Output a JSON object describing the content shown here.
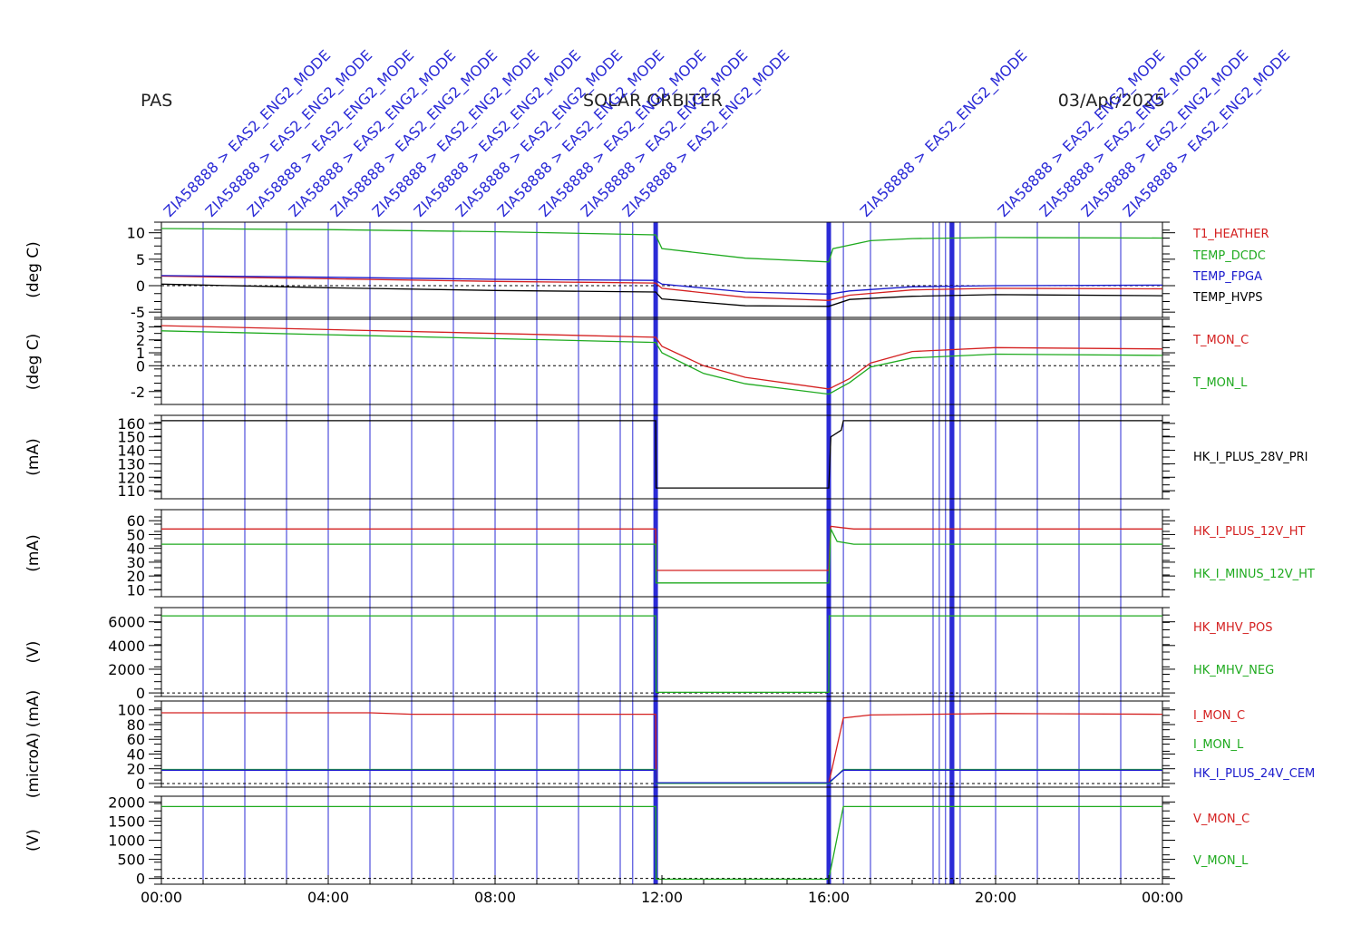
{
  "header": {
    "left": "PAS",
    "center": "SOLAR ORBITER",
    "right": "03/Apr/2025"
  },
  "colors": {
    "red": "#d42020",
    "green": "#1faa1f",
    "blue": "#1a1acc",
    "black": "#000000",
    "event": "#2b2bd6"
  },
  "xaxis": {
    "ticks": [
      "00:00",
      "04:00",
      "08:00",
      "12:00",
      "16:00",
      "20:00",
      "00:00"
    ],
    "range_hours": [
      0,
      24
    ]
  },
  "events": {
    "thin_hours": [
      1,
      2,
      3,
      4,
      5,
      6,
      7,
      8,
      9,
      10,
      11,
      11.3,
      16.35,
      17,
      18.5,
      18.65,
      18.8,
      19.0,
      19.15,
      20,
      21,
      22,
      23
    ],
    "thick_hours": [
      11.85,
      16.0,
      18.95
    ],
    "labels": [
      {
        "hour": 0.2,
        "text": "ZIA58888 > EAS2_ENG2_MODE"
      },
      {
        "hour": 1.2,
        "text": "ZIA58888 > EAS2_ENG2_MODE"
      },
      {
        "hour": 2.2,
        "text": "ZIA58888 > EAS2_ENG2_MODE"
      },
      {
        "hour": 3.2,
        "text": "ZIA58888 > EAS2_ENG2_MODE"
      },
      {
        "hour": 4.2,
        "text": "ZIA58888 > EAS2_ENG2_MODE"
      },
      {
        "hour": 5.2,
        "text": "ZIA58888 > EAS2_ENG2_MODE"
      },
      {
        "hour": 6.2,
        "text": "ZIA58888 > EAS2_ENG2_MODE"
      },
      {
        "hour": 7.2,
        "text": "ZIA58888 > EAS2_ENG2_MODE"
      },
      {
        "hour": 8.2,
        "text": "ZIA58888 > EAS2_ENG2_MODE"
      },
      {
        "hour": 9.2,
        "text": "ZIA58888 > EAS2_ENG2_MODE"
      },
      {
        "hour": 10.2,
        "text": "ZIA58888 > EAS2_ENG2_MODE"
      },
      {
        "hour": 11.2,
        "text": "ZIA58888 > EAS2_ENG2_MODE"
      },
      {
        "hour": 16.9,
        "text": "ZIA58888 > EAS2_ENG2_MODE"
      },
      {
        "hour": 20.2,
        "text": "ZIA58888 > EAS2_ENG2_MODE"
      },
      {
        "hour": 21.2,
        "text": "ZIA58888 > EAS2_ENG2_MODE"
      },
      {
        "hour": 22.2,
        "text": "ZIA58888 > EAS2_ENG2_MODE"
      },
      {
        "hour": 23.2,
        "text": "ZIA58888 > EAS2_ENG2_MODE"
      }
    ]
  },
  "chart_data": [
    {
      "type": "line",
      "ylabel": "(deg C)",
      "ylim": [
        -6,
        12
      ],
      "yticks": [
        -5,
        0,
        5,
        10
      ],
      "series": [
        {
          "name": "T1_HEATHER",
          "color": "#d42020",
          "x": [
            0,
            4,
            8,
            11.85,
            12,
            14,
            16,
            16.5,
            18,
            20,
            24
          ],
          "y": [
            1.8,
            1.3,
            0.8,
            0.5,
            -0.5,
            -2.2,
            -2.8,
            -1.8,
            -0.8,
            -0.5,
            -0.6
          ]
        },
        {
          "name": "TEMP_DCDC",
          "color": "#1faa1f",
          "x": [
            0,
            4,
            8,
            11.85,
            12,
            14,
            16,
            16.1,
            17,
            18,
            20,
            24
          ],
          "y": [
            10.8,
            10.6,
            10.2,
            9.6,
            7.0,
            5.2,
            4.5,
            7.0,
            8.5,
            8.9,
            9.1,
            9.0
          ]
        },
        {
          "name": "TEMP_FPGA",
          "color": "#1a1acc",
          "x": [
            0,
            4,
            8,
            11.85,
            12,
            14,
            16,
            16.5,
            18,
            20,
            24
          ],
          "y": [
            1.9,
            1.6,
            1.2,
            1.0,
            0.3,
            -1.2,
            -1.6,
            -1.0,
            -0.2,
            0.0,
            0.1
          ]
        },
        {
          "name": "TEMP_HVPS",
          "color": "#000000",
          "x": [
            0,
            4,
            8,
            11.85,
            12,
            14,
            16,
            16.5,
            18,
            20,
            24
          ],
          "y": [
            0.3,
            -0.4,
            -0.9,
            -1.2,
            -2.5,
            -3.8,
            -3.9,
            -2.6,
            -2.0,
            -1.7,
            -1.9
          ]
        }
      ],
      "grid": false
    },
    {
      "type": "line",
      "ylabel": "(deg C)",
      "ylim": [
        -3,
        3.6
      ],
      "yticks": [
        -2,
        0,
        1,
        2,
        3
      ],
      "series": [
        {
          "name": "T_MON_C",
          "color": "#d42020",
          "x": [
            0,
            4,
            8,
            11.85,
            12,
            13,
            14,
            16,
            16.5,
            17,
            18,
            20,
            24
          ],
          "y": [
            3.1,
            2.8,
            2.5,
            2.2,
            1.5,
            0,
            -0.9,
            -1.8,
            -1.0,
            0.2,
            1.1,
            1.4,
            1.3
          ]
        },
        {
          "name": "T_MON_L",
          "color": "#1faa1f",
          "x": [
            0,
            4,
            8,
            11.85,
            12,
            13,
            14,
            16,
            16.5,
            17,
            18,
            20,
            24
          ],
          "y": [
            2.7,
            2.4,
            2.1,
            1.8,
            1.0,
            -0.6,
            -1.4,
            -2.2,
            -1.3,
            -0.1,
            0.6,
            0.9,
            0.8
          ]
        }
      ],
      "grid": false
    },
    {
      "type": "line",
      "ylabel": "(mA)",
      "ylim": [
        104,
        166
      ],
      "yticks": [
        110,
        120,
        130,
        140,
        150,
        160
      ],
      "series": [
        {
          "name": "HK_I_PLUS_28V_PRI",
          "color": "#000000",
          "x": [
            0,
            11.85,
            11.86,
            16.0,
            16.05,
            16.3,
            16.35,
            24
          ],
          "y": [
            162,
            162,
            112,
            112,
            150,
            155,
            162,
            162
          ]
        }
      ],
      "grid": false
    },
    {
      "type": "line",
      "ylabel": "(mA)",
      "ylim": [
        5,
        68
      ],
      "yticks": [
        10,
        20,
        30,
        40,
        50,
        60
      ],
      "series": [
        {
          "name": "HK_I_PLUS_12V_HT",
          "color": "#d42020",
          "x": [
            0,
            11.85,
            11.86,
            16.0,
            16.05,
            16.3,
            16.6,
            24
          ],
          "y": [
            54,
            54,
            24,
            24,
            56,
            55,
            54,
            54
          ]
        },
        {
          "name": "HK_I_MINUS_12V_HT",
          "color": "#1faa1f",
          "x": [
            0,
            11.85,
            11.86,
            16.0,
            16.05,
            16.2,
            16.6,
            24
          ],
          "y": [
            43,
            43,
            15,
            15,
            54,
            45,
            43,
            43
          ]
        }
      ],
      "grid": false
    },
    {
      "type": "line",
      "ylabel": "(V)",
      "ylim": [
        -300,
        7200
      ],
      "yticks": [
        0,
        2000,
        4000,
        6000
      ],
      "series": [
        {
          "name": "HK_MHV_POS",
          "color": "#d42020",
          "x": [],
          "y": []
        },
        {
          "name": "HK_MHV_NEG",
          "color": "#1faa1f",
          "x": [
            0,
            11.85,
            11.86,
            16.0,
            16.01,
            24
          ],
          "y": [
            6500,
            6500,
            50,
            50,
            6500,
            6500
          ]
        }
      ],
      "grid": false
    },
    {
      "type": "line",
      "ylabel": "(microA) (mA)",
      "ylim": [
        -5,
        112
      ],
      "yticks": [
        0,
        20,
        40,
        60,
        80,
        100
      ],
      "series": [
        {
          "name": "I_MON_C",
          "color": "#d42020",
          "x": [
            0,
            5,
            6,
            11.85,
            11.86,
            16.0,
            16.35,
            17,
            20,
            24
          ],
          "y": [
            96,
            96,
            94,
            94,
            0,
            0,
            89,
            93,
            95,
            94
          ]
        },
        {
          "name": "I_MON_L",
          "color": "#1faa1f",
          "x": [
            0,
            11.85,
            11.86,
            16.0,
            16.35,
            24
          ],
          "y": [
            19,
            19,
            0,
            0,
            19,
            19
          ]
        },
        {
          "name": "HK_I_PLUS_24V_CEM",
          "color": "#1a1acc",
          "x": [
            0,
            11.85,
            11.86,
            16.0,
            16.35,
            24
          ],
          "y": [
            18,
            18,
            1,
            1,
            18,
            18
          ]
        }
      ],
      "grid": false
    },
    {
      "type": "line",
      "ylabel": "(V)",
      "ylim": [
        -150,
        2150
      ],
      "yticks": [
        0,
        500,
        1000,
        1500,
        2000
      ],
      "series": [
        {
          "name": "V_MON_C",
          "color": "#d42020",
          "x": [],
          "y": []
        },
        {
          "name": "V_MON_L",
          "color": "#1faa1f",
          "x": [
            0,
            11.85,
            11.86,
            16.0,
            16.35,
            24
          ],
          "y": [
            1880,
            1880,
            -20,
            -20,
            1880,
            1880
          ]
        }
      ],
      "grid": false
    }
  ]
}
